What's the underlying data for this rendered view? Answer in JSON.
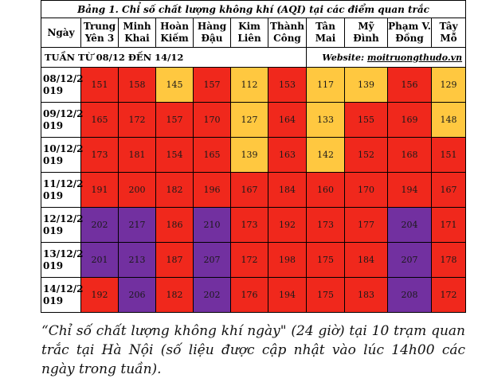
{
  "title": "Bảng 1. Chỉ số chất lượng không khí (AQI) tại các điểm quan trắc",
  "header": {
    "date_label": "Ngày",
    "stations": [
      [
        "Trung",
        "Yên 3"
      ],
      [
        "Minh",
        "Khai"
      ],
      [
        "Hoàn",
        "Kiếm"
      ],
      [
        "Hàng",
        "Đậu"
      ],
      [
        "Kim",
        "Liên"
      ],
      [
        "Thành",
        "Công"
      ],
      [
        "Tân",
        "Mai"
      ],
      [
        "Mỹ",
        "Đình"
      ],
      [
        "Phạm V.",
        "Đồng"
      ],
      [
        "Tây",
        "Mỗ"
      ]
    ]
  },
  "week_label": "TUẦN TỪ 08/12 ĐẾN 14/12",
  "website_label": "Website:",
  "website": "moitruongthudo.vn",
  "rows": [
    {
      "date": [
        "08/12/2",
        "019"
      ],
      "values": [
        151,
        158,
        145,
        157,
        112,
        153,
        117,
        139,
        156,
        129
      ]
    },
    {
      "date": [
        "09/12/2",
        "019"
      ],
      "values": [
        165,
        172,
        157,
        170,
        127,
        164,
        133,
        155,
        169,
        148
      ]
    },
    {
      "date": [
        "10/12/2",
        "019"
      ],
      "values": [
        173,
        181,
        154,
        165,
        139,
        163,
        142,
        152,
        168,
        151
      ]
    },
    {
      "date": [
        "11/12/2",
        "019"
      ],
      "values": [
        191,
        200,
        182,
        196,
        167,
        184,
        160,
        170,
        194,
        167
      ]
    },
    {
      "date": [
        "12/12/2",
        "019"
      ],
      "values": [
        202,
        217,
        186,
        210,
        173,
        192,
        173,
        177,
        204,
        171
      ]
    },
    {
      "date": [
        "13/12/2",
        "019"
      ],
      "values": [
        201,
        213,
        187,
        207,
        172,
        198,
        175,
        184,
        207,
        178
      ]
    },
    {
      "date": [
        "14/12/2",
        "019"
      ],
      "values": [
        192,
        206,
        182,
        202,
        176,
        194,
        175,
        183,
        208,
        172
      ]
    }
  ],
  "levels": {
    "orange": {
      "color": "#ffc840",
      "range": [
        101,
        150
      ]
    },
    "red": {
      "color": "#f0281c",
      "range": [
        151,
        200
      ]
    },
    "purple": {
      "color": "#7230a0",
      "range": [
        201,
        300
      ]
    }
  },
  "caption": "“Chỉ số chất lượng không khí ngày\" (24 giờ) tại 10 trạm quan trắc tại Hà Nội (số liệu được cập nhật vào lúc 14h00 các ngày trong tuần)."
}
